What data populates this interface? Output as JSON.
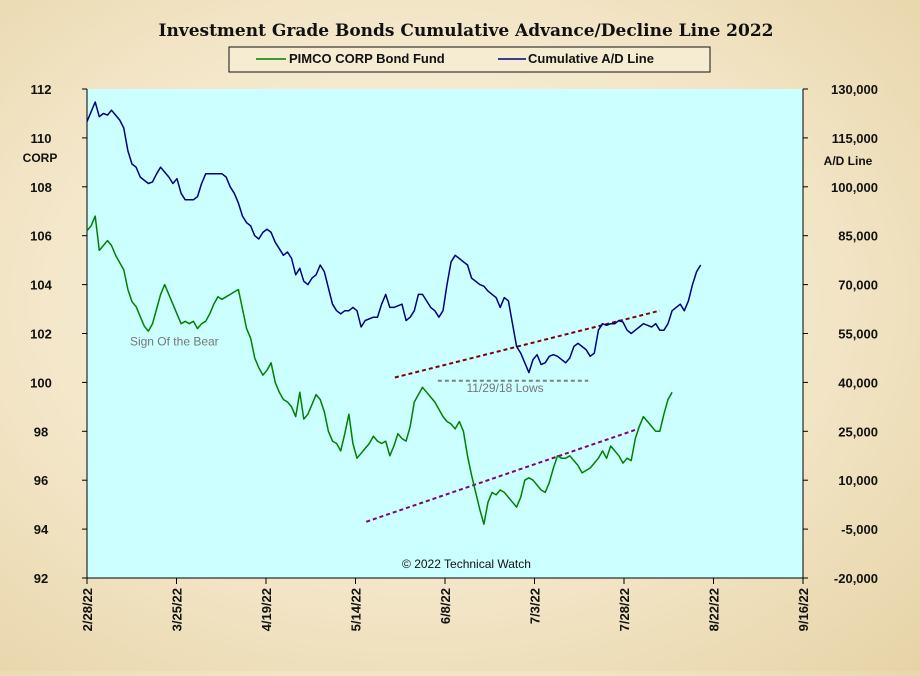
{
  "chart_data": {
    "type": "line",
    "title": "Investment Grade Bonds Cumulative Advance/Decline Line 2022",
    "ylabel_left": "CORP",
    "ylabel_right": "A/D Line",
    "ylim_left": [
      92,
      112
    ],
    "ylim_right": [
      -20000,
      130000
    ],
    "yticks_left": [
      "112",
      "110",
      "108",
      "106",
      "104",
      "102",
      "100",
      "98",
      "96",
      "94",
      "92"
    ],
    "yticks_right": [
      "130,000",
      "115,000",
      "100,000",
      "85,000",
      "70,000",
      "55,000",
      "40,000",
      "25,000",
      "10,000",
      "-5,000",
      "-20,000"
    ],
    "x_dates": [
      "2/28/22",
      "3/25/22",
      "4/19/22",
      "5/14/22",
      "6/8/22",
      "7/3/22",
      "7/28/22",
      "8/22/22",
      "9/16/22"
    ],
    "plot_background": "#ccffff",
    "grid": false,
    "legend_position": "top-center",
    "series": [
      {
        "name": "PIMCO CORP Bond Fund",
        "axis": "left",
        "color": "#008000",
        "points": [
          [
            0,
            106.2
          ],
          [
            1,
            106.4
          ],
          [
            2,
            106.8
          ],
          [
            3,
            105.4
          ],
          [
            4,
            105.6
          ],
          [
            5,
            105.8
          ],
          [
            6,
            105.6
          ],
          [
            7,
            105.2
          ],
          [
            8,
            104.9
          ],
          [
            9,
            104.6
          ],
          [
            10,
            103.8
          ],
          [
            11,
            103.3
          ],
          [
            12,
            103.1
          ],
          [
            13,
            102.7
          ],
          [
            14,
            102.3
          ],
          [
            15,
            102.1
          ],
          [
            16,
            102.4
          ],
          [
            17,
            103.0
          ],
          [
            18,
            103.6
          ],
          [
            19,
            104.0
          ],
          [
            20,
            103.6
          ],
          [
            21,
            103.2
          ],
          [
            22,
            102.8
          ],
          [
            23,
            102.4
          ],
          [
            24,
            102.5
          ],
          [
            25,
            102.4
          ],
          [
            26,
            102.5
          ],
          [
            27,
            102.2
          ],
          [
            28,
            102.4
          ],
          [
            29,
            102.5
          ],
          [
            30,
            102.8
          ],
          [
            31,
            103.2
          ],
          [
            32,
            103.5
          ],
          [
            33,
            103.4
          ],
          [
            34,
            103.5
          ],
          [
            35,
            103.6
          ],
          [
            36,
            103.7
          ],
          [
            37,
            103.8
          ],
          [
            38,
            103.0
          ],
          [
            39,
            102.2
          ],
          [
            40,
            101.8
          ],
          [
            41,
            101.0
          ],
          [
            42,
            100.6
          ],
          [
            43,
            100.3
          ],
          [
            44,
            100.5
          ],
          [
            45,
            100.8
          ],
          [
            46,
            100.0
          ],
          [
            47,
            99.6
          ],
          [
            48,
            99.3
          ],
          [
            49,
            99.2
          ],
          [
            50,
            99.0
          ],
          [
            51,
            98.6
          ],
          [
            52,
            99.6
          ],
          [
            53,
            98.5
          ],
          [
            54,
            98.7
          ],
          [
            55,
            99.1
          ],
          [
            56,
            99.5
          ],
          [
            57,
            99.3
          ],
          [
            58,
            98.8
          ],
          [
            59,
            98.0
          ],
          [
            60,
            97.6
          ],
          [
            61,
            97.5
          ],
          [
            62,
            97.2
          ],
          [
            63,
            97.9
          ],
          [
            64,
            98.7
          ],
          [
            65,
            97.5
          ],
          [
            66,
            96.9
          ],
          [
            67,
            97.1
          ],
          [
            68,
            97.3
          ],
          [
            69,
            97.5
          ],
          [
            70,
            97.8
          ],
          [
            71,
            97.6
          ],
          [
            72,
            97.5
          ],
          [
            73,
            97.6
          ],
          [
            74,
            97.0
          ],
          [
            75,
            97.4
          ],
          [
            76,
            97.9
          ],
          [
            77,
            97.7
          ],
          [
            78,
            97.6
          ],
          [
            79,
            98.2
          ],
          [
            80,
            99.2
          ],
          [
            81,
            99.5
          ],
          [
            82,
            99.8
          ],
          [
            83,
            99.6
          ],
          [
            84,
            99.4
          ],
          [
            85,
            99.2
          ],
          [
            86,
            98.9
          ],
          [
            87,
            98.6
          ],
          [
            88,
            98.4
          ],
          [
            89,
            98.3
          ],
          [
            90,
            98.1
          ],
          [
            91,
            98.4
          ],
          [
            92,
            98.0
          ],
          [
            93,
            97.0
          ],
          [
            94,
            96.2
          ],
          [
            95,
            95.5
          ],
          [
            96,
            94.8
          ],
          [
            97,
            94.2
          ],
          [
            98,
            95.1
          ],
          [
            99,
            95.5
          ],
          [
            100,
            95.4
          ],
          [
            101,
            95.6
          ],
          [
            102,
            95.5
          ],
          [
            103,
            95.3
          ],
          [
            104,
            95.1
          ],
          [
            105,
            94.9
          ],
          [
            106,
            95.3
          ],
          [
            107,
            96.0
          ],
          [
            108,
            96.1
          ],
          [
            109,
            96.0
          ],
          [
            110,
            95.8
          ],
          [
            111,
            95.6
          ],
          [
            112,
            95.5
          ],
          [
            113,
            95.9
          ],
          [
            114,
            96.5
          ],
          [
            115,
            97.0
          ],
          [
            116,
            96.9
          ],
          [
            117,
            96.9
          ],
          [
            118,
            97.0
          ],
          [
            119,
            96.8
          ],
          [
            120,
            96.6
          ],
          [
            121,
            96.3
          ],
          [
            122,
            96.4
          ],
          [
            123,
            96.5
          ],
          [
            124,
            96.7
          ],
          [
            125,
            96.9
          ],
          [
            126,
            97.2
          ],
          [
            127,
            96.9
          ],
          [
            128,
            97.4
          ],
          [
            129,
            97.2
          ],
          [
            130,
            97.0
          ],
          [
            131,
            96.7
          ],
          [
            132,
            96.9
          ],
          [
            133,
            96.8
          ],
          [
            134,
            97.7
          ],
          [
            135,
            98.2
          ],
          [
            136,
            98.6
          ],
          [
            137,
            98.4
          ],
          [
            138,
            98.2
          ],
          [
            139,
            98.0
          ],
          [
            140,
            98.0
          ],
          [
            141,
            98.7
          ],
          [
            142,
            99.3
          ],
          [
            143,
            99.6
          ]
        ]
      },
      {
        "name": "Cumulative A/D Line",
        "axis": "right",
        "color": "#000080",
        "points": [
          [
            0,
            120000
          ],
          [
            1,
            123000
          ],
          [
            2,
            126000
          ],
          [
            3,
            121500
          ],
          [
            4,
            122500
          ],
          [
            5,
            122000
          ],
          [
            6,
            123500
          ],
          [
            7,
            122000
          ],
          [
            8,
            120500
          ],
          [
            9,
            118000
          ],
          [
            10,
            111000
          ],
          [
            11,
            107000
          ],
          [
            12,
            106000
          ],
          [
            13,
            103000
          ],
          [
            14,
            102000
          ],
          [
            15,
            101000
          ],
          [
            16,
            101500
          ],
          [
            17,
            104000
          ],
          [
            18,
            106000
          ],
          [
            19,
            104500
          ],
          [
            20,
            103000
          ],
          [
            21,
            101000
          ],
          [
            22,
            102500
          ],
          [
            23,
            98000
          ],
          [
            24,
            96000
          ],
          [
            25,
            96000
          ],
          [
            26,
            96000
          ],
          [
            27,
            97000
          ],
          [
            28,
            101000
          ],
          [
            29,
            104000
          ],
          [
            30,
            104000
          ],
          [
            31,
            104000
          ],
          [
            32,
            104000
          ],
          [
            33,
            104000
          ],
          [
            34,
            103000
          ],
          [
            35,
            100000
          ],
          [
            36,
            98000
          ],
          [
            37,
            95000
          ],
          [
            38,
            91000
          ],
          [
            39,
            89000
          ],
          [
            40,
            88000
          ],
          [
            41,
            85000
          ],
          [
            42,
            84000
          ],
          [
            43,
            86000
          ],
          [
            44,
            87000
          ],
          [
            45,
            86000
          ],
          [
            46,
            83000
          ],
          [
            47,
            81000
          ],
          [
            48,
            79000
          ],
          [
            49,
            80000
          ],
          [
            50,
            78000
          ],
          [
            51,
            73000
          ],
          [
            52,
            75000
          ],
          [
            53,
            71000
          ],
          [
            54,
            70000
          ],
          [
            55,
            72000
          ],
          [
            56,
            73000
          ],
          [
            57,
            76000
          ],
          [
            58,
            74000
          ],
          [
            59,
            69000
          ],
          [
            60,
            64000
          ],
          [
            61,
            62000
          ],
          [
            62,
            61000
          ],
          [
            63,
            62000
          ],
          [
            64,
            62000
          ],
          [
            65,
            63000
          ],
          [
            66,
            62000
          ],
          [
            67,
            57000
          ],
          [
            68,
            59000
          ],
          [
            69,
            59500
          ],
          [
            70,
            60000
          ],
          [
            71,
            60000
          ],
          [
            72,
            64000
          ],
          [
            73,
            67000
          ],
          [
            74,
            63000
          ],
          [
            75,
            63000
          ],
          [
            76,
            63500
          ],
          [
            77,
            64000
          ],
          [
            78,
            59000
          ],
          [
            79,
            60000
          ],
          [
            80,
            62000
          ],
          [
            81,
            67000
          ],
          [
            82,
            67000
          ],
          [
            83,
            65000
          ],
          [
            84,
            63000
          ],
          [
            85,
            62000
          ],
          [
            86,
            60000
          ],
          [
            87,
            62000
          ],
          [
            88,
            70000
          ],
          [
            89,
            77000
          ],
          [
            90,
            79000
          ],
          [
            91,
            78000
          ],
          [
            92,
            77000
          ],
          [
            93,
            76000
          ],
          [
            94,
            72000
          ],
          [
            95,
            71000
          ],
          [
            96,
            70000
          ],
          [
            97,
            69500
          ],
          [
            98,
            68000
          ],
          [
            99,
            67000
          ],
          [
            100,
            66000
          ],
          [
            101,
            63000
          ],
          [
            102,
            66000
          ],
          [
            103,
            65000
          ],
          [
            104,
            58000
          ],
          [
            105,
            51000
          ],
          [
            106,
            49000
          ],
          [
            107,
            46000
          ],
          [
            108,
            43000
          ],
          [
            109,
            47000
          ],
          [
            110,
            48500
          ],
          [
            111,
            45500
          ],
          [
            112,
            46000
          ],
          [
            113,
            48000
          ],
          [
            114,
            48500
          ],
          [
            115,
            48000
          ],
          [
            116,
            47000
          ],
          [
            117,
            46000
          ],
          [
            118,
            47500
          ],
          [
            119,
            51000
          ],
          [
            120,
            52000
          ],
          [
            121,
            51000
          ],
          [
            122,
            50000
          ],
          [
            123,
            48000
          ],
          [
            124,
            49000
          ],
          [
            125,
            56000
          ],
          [
            126,
            58000
          ],
          [
            127,
            57500
          ],
          [
            128,
            58000
          ],
          [
            129,
            58000
          ],
          [
            130,
            59000
          ],
          [
            131,
            58500
          ],
          [
            132,
            56000
          ],
          [
            133,
            55000
          ],
          [
            134,
            56000
          ],
          [
            135,
            57000
          ],
          [
            136,
            58000
          ],
          [
            137,
            57500
          ],
          [
            138,
            57000
          ],
          [
            139,
            58000
          ],
          [
            140,
            56000
          ],
          [
            141,
            56000
          ],
          [
            142,
            58000
          ],
          [
            143,
            62000
          ],
          [
            144,
            63000
          ],
          [
            145,
            64000
          ],
          [
            146,
            62000
          ],
          [
            147,
            65000
          ],
          [
            148,
            70000
          ],
          [
            149,
            74000
          ],
          [
            150,
            76000
          ]
        ]
      }
    ],
    "trendlines": [
      {
        "axis": "right",
        "color": "#800000",
        "from": [
          0.43,
          41500
        ],
        "to": [
          0.8,
          62000
        ]
      },
      {
        "axis": "left",
        "color": "#800080",
        "from": [
          0.39,
          94.3
        ],
        "to": [
          0.77,
          98.1
        ]
      },
      {
        "axis": "right",
        "color": "#808080",
        "from": [
          0.49,
          40500
        ],
        "to": [
          0.7,
          40500
        ]
      }
    ],
    "annotations": [
      {
        "text": "Sign Of the Bear",
        "axis": "left",
        "at": [
          0.06,
          101.5
        ]
      },
      {
        "text": "11/29/18 Lows",
        "axis": "right",
        "at": [
          0.53,
          37000
        ]
      },
      {
        "text": "© 2022 Technical Watch",
        "axis": "left",
        "at": [
          0.44,
          92.4
        ]
      }
    ]
  }
}
